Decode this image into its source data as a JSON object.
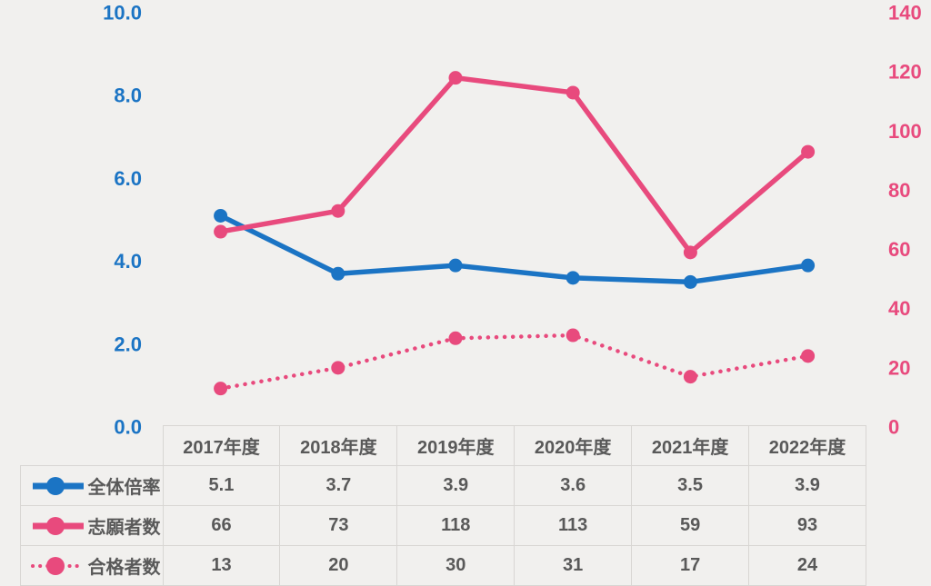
{
  "page": {
    "background": "#f1f0ee",
    "table_text_color": "#595959",
    "table_border_color": "#d8d6d3"
  },
  "chart_data": {
    "type": "line",
    "categories": [
      "2017年度",
      "2018年度",
      "2019年度",
      "2020年度",
      "2021年度",
      "2022年度"
    ],
    "series": [
      {
        "name": "全体倍率",
        "axis": "left",
        "style": "solid",
        "color": "#1b74c4",
        "values": [
          5.1,
          3.7,
          3.9,
          3.6,
          3.5,
          3.9
        ],
        "labels": [
          "5.1",
          "3.7",
          "3.9",
          "3.6",
          "3.5",
          "3.9"
        ]
      },
      {
        "name": "志願者数",
        "axis": "right",
        "style": "solid",
        "color": "#e84a7d",
        "values": [
          66,
          73,
          118,
          113,
          59,
          93
        ],
        "labels": [
          "66",
          "73",
          "118",
          "113",
          "59",
          "93"
        ]
      },
      {
        "name": "合格者数",
        "axis": "right",
        "style": "dotted",
        "color": "#e84a7d",
        "values": [
          13,
          20,
          30,
          31,
          17,
          24
        ],
        "labels": [
          "13",
          "20",
          "30",
          "31",
          "17",
          "24"
        ]
      }
    ],
    "left_axis": {
      "ticks": [
        "0.0",
        "2.0",
        "4.0",
        "6.0",
        "8.0",
        "10.0"
      ],
      "min": 0,
      "max": 10,
      "color": "#1b74c4",
      "side": "left"
    },
    "right_axis": {
      "ticks": [
        "0",
        "20",
        "40",
        "60",
        "80",
        "100",
        "120",
        "140"
      ],
      "min": 0,
      "max": 140,
      "color": "#e84a7d",
      "side": "right"
    },
    "title": "",
    "grid": false,
    "legend_position": "table-row-headers"
  }
}
